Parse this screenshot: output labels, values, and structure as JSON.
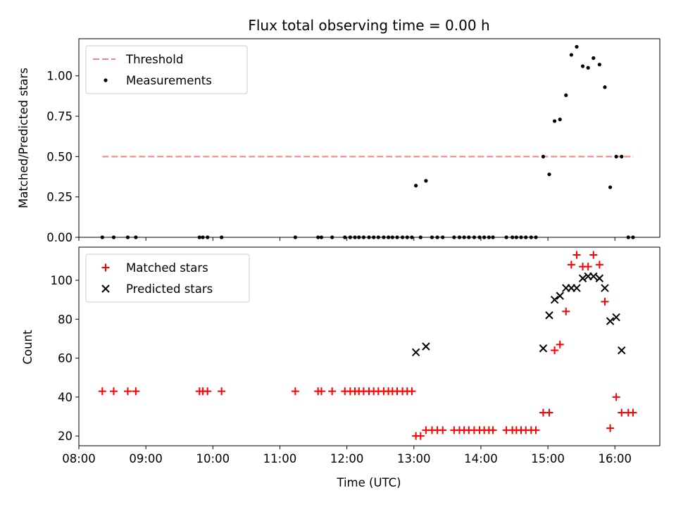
{
  "chart_data": [
    {
      "type": "scatter",
      "title": "Flux total observing time = 0.00 h",
      "xlabel": "",
      "ylabel": "Matched/Predicted stars",
      "x_unit": "hours UTC",
      "xlim": [
        8.0,
        16.67
      ],
      "ylim": [
        0.0,
        1.23
      ],
      "yticks": [
        "0.00",
        "0.25",
        "0.50",
        "0.75",
        "1.00"
      ],
      "ytick_values": [
        0.0,
        0.25,
        0.5,
        0.75,
        1.0
      ],
      "legend": {
        "placement": "top-left",
        "entries": [
          "Threshold",
          "Measurements"
        ]
      },
      "threshold": {
        "name": "Threshold",
        "value": 0.5,
        "x_start": 8.35,
        "x_end": 16.28,
        "color": "#ff7f7f"
      },
      "measurements": {
        "name": "Measurements",
        "color": "#000000",
        "x": [
          8.35,
          8.52,
          8.73,
          8.85,
          9.8,
          9.85,
          9.92,
          10.13,
          11.23,
          11.57,
          11.62,
          11.78,
          11.97,
          12.05,
          12.12,
          12.18,
          12.25,
          12.33,
          12.4,
          12.47,
          12.55,
          12.62,
          12.68,
          12.75,
          12.83,
          12.9,
          12.97,
          13.03,
          13.1,
          13.18,
          13.27,
          13.35,
          13.43,
          13.6,
          13.68,
          13.75,
          13.82,
          13.9,
          13.98,
          14.05,
          14.12,
          14.18,
          14.38,
          14.47,
          14.53,
          14.6,
          14.67,
          14.75,
          14.82,
          14.93,
          15.02,
          15.1,
          15.18,
          15.27,
          15.35,
          15.43,
          15.52,
          15.6,
          15.68,
          15.77,
          15.85,
          15.93,
          16.02,
          16.1,
          16.2,
          16.27
        ],
        "y": [
          0,
          0,
          0,
          0,
          0,
          0,
          0,
          0,
          0,
          0,
          0,
          0,
          0,
          0,
          0,
          0,
          0,
          0,
          0,
          0,
          0,
          0,
          0,
          0,
          0,
          0,
          0,
          0.32,
          0,
          0.35,
          0,
          0,
          0,
          0,
          0,
          0,
          0,
          0,
          0,
          0,
          0,
          0,
          0,
          0,
          0,
          0,
          0,
          0,
          0,
          0.5,
          0.39,
          0.72,
          0.73,
          0.88,
          1.13,
          1.18,
          1.06,
          1.05,
          1.11,
          1.07,
          0.93,
          0.31,
          0.5,
          0.5,
          0,
          0
        ]
      }
    },
    {
      "type": "scatter",
      "title": "",
      "xlabel": "Time (UTC)",
      "ylabel": "Count",
      "x_unit": "hours UTC",
      "xlim": [
        8.0,
        16.67
      ],
      "ylim": [
        15.0,
        117.0
      ],
      "xticks": [
        "08:00",
        "09:00",
        "10:00",
        "11:00",
        "12:00",
        "13:00",
        "14:00",
        "15:00",
        "16:00"
      ],
      "xtick_values": [
        8,
        9,
        10,
        11,
        12,
        13,
        14,
        15,
        16
      ],
      "yticks": [
        "20",
        "40",
        "60",
        "80",
        "100"
      ],
      "ytick_values": [
        20,
        40,
        60,
        80,
        100
      ],
      "legend": {
        "placement": "top-left",
        "entries": [
          "Matched stars",
          "Predicted stars"
        ]
      },
      "series": [
        {
          "name": "Matched stars",
          "marker": "plus",
          "color": "#ff0000",
          "x": [
            8.35,
            8.52,
            8.73,
            8.85,
            9.8,
            9.85,
            9.92,
            10.13,
            11.23,
            11.57,
            11.62,
            11.78,
            11.97,
            12.05,
            12.12,
            12.18,
            12.25,
            12.33,
            12.4,
            12.47,
            12.55,
            12.62,
            12.68,
            12.75,
            12.83,
            12.9,
            12.97,
            13.03,
            13.1,
            13.18,
            13.27,
            13.35,
            13.43,
            13.6,
            13.68,
            13.75,
            13.82,
            13.9,
            13.98,
            14.05,
            14.12,
            14.18,
            14.38,
            14.47,
            14.53,
            14.6,
            14.67,
            14.75,
            14.82,
            14.93,
            15.02,
            15.1,
            15.18,
            15.27,
            15.35,
            15.43,
            15.52,
            15.6,
            15.68,
            15.77,
            15.85,
            15.93,
            16.02,
            16.1,
            16.2,
            16.27
          ],
          "y": [
            43,
            43,
            43,
            43,
            43,
            43,
            43,
            43,
            43,
            43,
            43,
            43,
            43,
            43,
            43,
            43,
            43,
            43,
            43,
            43,
            43,
            43,
            43,
            43,
            43,
            43,
            43,
            20,
            20,
            23,
            23,
            23,
            23,
            23,
            23,
            23,
            23,
            23,
            23,
            23,
            23,
            23,
            23,
            23,
            23,
            23,
            23,
            23,
            23,
            32,
            32,
            64,
            67,
            84,
            108,
            113,
            107,
            107,
            113,
            108,
            89,
            24,
            40,
            32,
            32,
            32
          ]
        },
        {
          "name": "Predicted stars",
          "marker": "x",
          "color": "#000000",
          "x": [
            13.03,
            13.18,
            14.93,
            15.02,
            15.1,
            15.18,
            15.27,
            15.35,
            15.43,
            15.52,
            15.6,
            15.68,
            15.77,
            15.85,
            15.93,
            16.02,
            16.1
          ],
          "y": [
            63,
            66,
            65,
            82,
            90,
            92,
            96,
            96,
            96,
            101,
            102,
            102,
            101,
            96,
            79,
            81,
            64
          ]
        }
      ]
    }
  ]
}
